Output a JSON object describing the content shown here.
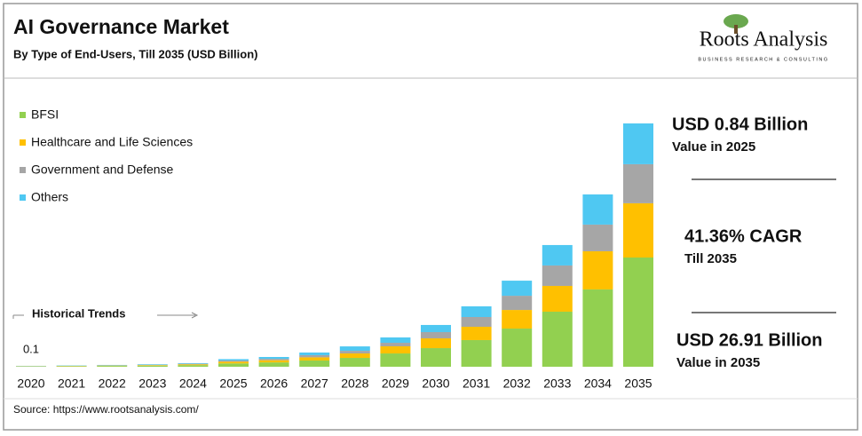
{
  "chart_data": {
    "type": "bar",
    "stacked": true,
    "title": "AI Governance Market",
    "subtitle": "By Type of End-Users, Till 2035 (USD Billion)",
    "brand": "Roots Analysis",
    "brand_tagline": "BUSINESS RESEARCH & CONSULTING",
    "annotation": "Historical Trends",
    "first_bar_label": "0.1",
    "source": "Source: https://www.rootsanalysis.com/",
    "categories": [
      "2020",
      "2021",
      "2022",
      "2023",
      "2024",
      "2025",
      "2026",
      "2027",
      "2028",
      "2029",
      "2030",
      "2031",
      "2032",
      "2033",
      "2034",
      "2035"
    ],
    "series": [
      {
        "name": "BFSI",
        "color": "#92d050",
        "values": [
          0.04,
          0.06,
          0.09,
          0.12,
          0.18,
          0.37,
          0.48,
          0.69,
          0.98,
          1.47,
          2.06,
          2.95,
          4.22,
          6.09,
          8.55,
          12.08
        ]
      },
      {
        "name": "Healthcare and Life Sciences",
        "color": "#ffc000",
        "values": [
          0.02,
          0.03,
          0.04,
          0.06,
          0.09,
          0.19,
          0.24,
          0.35,
          0.49,
          0.79,
          1.08,
          1.47,
          2.06,
          2.85,
          4.22,
          6.0
        ]
      },
      {
        "name": "Government and Defense",
        "color": "#a6a6a6",
        "values": [
          0.02,
          0.02,
          0.03,
          0.04,
          0.06,
          0.13,
          0.16,
          0.24,
          0.29,
          0.39,
          0.69,
          1.08,
          1.57,
          2.26,
          2.95,
          4.32
        ]
      },
      {
        "name": "Others",
        "color": "#4fc8f2",
        "values": [
          0.02,
          0.03,
          0.04,
          0.06,
          0.07,
          0.15,
          0.2,
          0.29,
          0.49,
          0.59,
          0.79,
          1.18,
          1.67,
          2.26,
          3.34,
          4.51
        ]
      }
    ],
    "highlights": [
      {
        "value": "USD 0.84 Billion",
        "caption": "Value in 2025"
      },
      {
        "value": "41.36% CAGR",
        "caption": "Till 2035"
      },
      {
        "value": "USD 26.91 Billion",
        "caption": "Value in 2035"
      }
    ]
  }
}
